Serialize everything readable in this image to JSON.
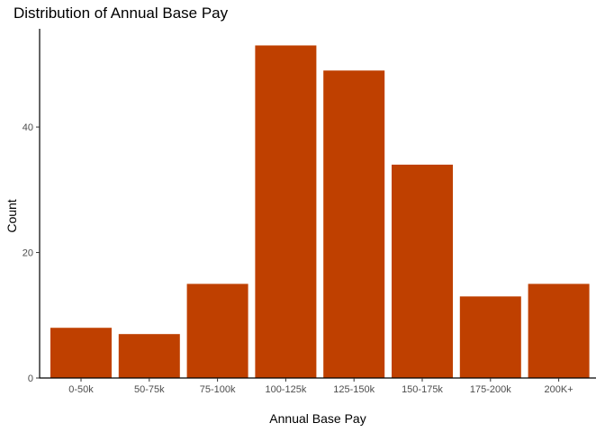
{
  "chart_data": {
    "type": "bar",
    "title": "Distribution of Annual Base Pay",
    "xlabel": "Annual Base Pay",
    "ylabel": "Count",
    "categories": [
      "0-50k",
      "50-75k",
      "75-100k",
      "100-125k",
      "125-150k",
      "150-175k",
      "175-200k",
      "200K+"
    ],
    "values": [
      8,
      7,
      15,
      53,
      49,
      34,
      13,
      15
    ],
    "ylim": [
      0,
      55.65
    ],
    "yticks": [
      0,
      20,
      40
    ],
    "bar_color": "#BF4000",
    "grid": false,
    "legend": "none"
  }
}
